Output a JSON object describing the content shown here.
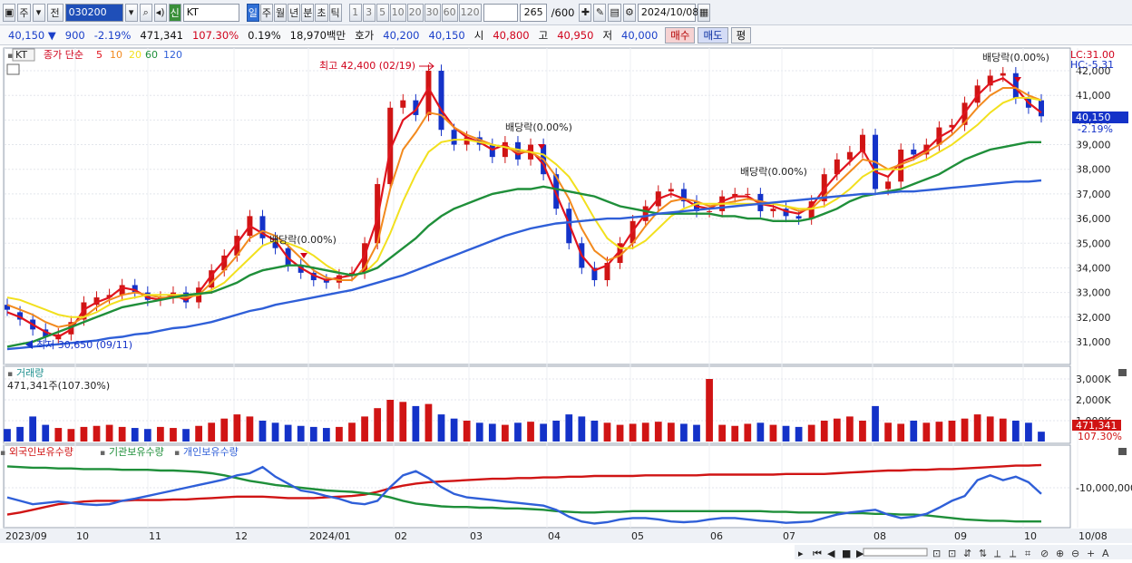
{
  "toolbar": {
    "period": "주",
    "prev_label": "전",
    "code": "030200",
    "name_badge": "신",
    "name": "KT",
    "tf_buttons": [
      "일",
      "주",
      "월",
      "년",
      "분",
      "초",
      "틱"
    ],
    "active_tf": "일",
    "n_buttons": [
      "1",
      "3",
      "5",
      "10",
      "20",
      "30",
      "60",
      "120"
    ],
    "count": "265",
    "count_max": "/600",
    "date": "2024/10/08"
  },
  "quote": {
    "price": "40,150",
    "change": "900",
    "change_pct": "-2.19%",
    "volume": "471,341",
    "vol_ratio": "107.30%",
    "turnover": "0.19%",
    "amount": "18,970백만",
    "ask_label": "호가",
    "ask": "40,200",
    "bid": "40,150",
    "open_label": "시",
    "open": "40,800",
    "high_label": "고",
    "high": "40,950",
    "low_label": "저",
    "low": "40,000",
    "buy_label": "매수",
    "sell_label": "매도",
    "eval_label": "평"
  },
  "legend": {
    "tag": "KT",
    "title": "종가 단순",
    "ma": [
      "5",
      "10",
      "20",
      "60",
      "120"
    ]
  },
  "annotations": {
    "high": "최고 42,400 (02/19)",
    "low": "최저 30,650 (09/11)",
    "div": "배당락(0.00%)",
    "lc": "LC:31.00",
    "hc": "HC:-5.31",
    "price_tag": "40,150",
    "price_pct": "-2.19%"
  },
  "volume_panel": {
    "title": "거래량",
    "info": "471,341주(107.30%)",
    "tag": "471,341",
    "tag_pct": "107.30%"
  },
  "holding_panel": {
    "items": [
      "외국인보유수량",
      "기관보유수량",
      "개인보유수량"
    ],
    "axis_label": "-10,000,000"
  },
  "colors": {
    "ma5": "#e0141e",
    "ma10": "#f28a1e",
    "ma20": "#f2e01e",
    "ma60": "#1f8f3a",
    "ma120": "#2f5fd8",
    "up": "#d01414",
    "down": "#1432c8"
  },
  "chart_data": [
    {
      "type": "candlestick",
      "title": "KT",
      "y_ticks": [
        31000,
        32000,
        33000,
        34000,
        35000,
        36000,
        37000,
        38000,
        39000,
        40000,
        41000,
        42000
      ],
      "ylim": [
        30300,
        42700
      ],
      "x_labels": [
        "2023/09",
        "10",
        "11",
        "12",
        "2024/01",
        "02",
        "03",
        "04",
        "05",
        "06",
        "07",
        "08",
        "09",
        "10",
        "10/08"
      ],
      "series": [
        {
          "name": "5",
          "values": [
            32200,
            32000,
            31700,
            31400,
            31200,
            31500,
            32300,
            32600,
            32800,
            33200,
            33100,
            32800,
            32700,
            32900,
            32700,
            33000,
            33700,
            34300,
            35000,
            35700,
            35400,
            35100,
            34400,
            34000,
            33700,
            33500,
            33600,
            33700,
            34500,
            36000,
            38800,
            40000,
            40400,
            41300,
            40400,
            39700,
            39300,
            39100,
            38800,
            39000,
            38600,
            38800,
            38200,
            37000,
            35800,
            34500,
            33900,
            34100,
            34700,
            35500,
            36200,
            36800,
            37000,
            36800,
            36500,
            36400,
            36700,
            36900,
            36900,
            36600,
            36500,
            36300,
            36200,
            36500,
            37200,
            37800,
            38300,
            38800,
            37900,
            37700,
            38300,
            38500,
            38800,
            39300,
            39600,
            40300,
            41000,
            41500,
            41700,
            41300,
            40700,
            40300
          ]
        },
        {
          "name": "10",
          "values": [
            32500,
            32300,
            32100,
            31800,
            31600,
            31700,
            32000,
            32400,
            32700,
            32900,
            33000,
            32900,
            32800,
            32800,
            32800,
            32900,
            33400,
            33900,
            34500,
            35200,
            35500,
            35300,
            34900,
            34400,
            33900,
            33600,
            33500,
            33500,
            34000,
            35000,
            37200,
            38800,
            39500,
            40300,
            40200,
            39700,
            39400,
            39200,
            39000,
            38900,
            38700,
            38700,
            38400,
            37700,
            36800,
            35600,
            34700,
            34300,
            34500,
            35000,
            35700,
            36300,
            36700,
            36800,
            36700,
            36500,
            36600,
            36700,
            36800,
            36700,
            36600,
            36500,
            36300,
            36400,
            36900,
            37400,
            37900,
            38400,
            38300,
            38000,
            38200,
            38400,
            38700,
            39000,
            39400,
            39900,
            40500,
            41000,
            41300,
            41300,
            41000,
            40800
          ]
        },
        {
          "name": "20",
          "values": [
            32800,
            32700,
            32500,
            32300,
            32100,
            32000,
            32000,
            32200,
            32500,
            32700,
            32800,
            32900,
            32900,
            32900,
            32900,
            32900,
            33100,
            33400,
            33900,
            34400,
            34900,
            35100,
            35000,
            34800,
            34500,
            34100,
            33800,
            33700,
            33800,
            34300,
            35400,
            36700,
            37800,
            38700,
            39100,
            39200,
            39200,
            39100,
            39000,
            38900,
            38800,
            38700,
            38600,
            38200,
            37700,
            36900,
            36000,
            35200,
            34800,
            34800,
            35100,
            35600,
            36100,
            36400,
            36600,
            36600,
            36600,
            36600,
            36600,
            36600,
            36600,
            36500,
            36400,
            36400,
            36500,
            36800,
            37200,
            37700,
            38000,
            38000,
            38000,
            38200,
            38400,
            38700,
            39000,
            39400,
            39800,
            40300,
            40700,
            40900,
            40900,
            40800
          ]
        },
        {
          "name": "60",
          "values": [
            30800,
            30900,
            31000,
            31200,
            31400,
            31600,
            31800,
            32000,
            32200,
            32400,
            32500,
            32600,
            32700,
            32800,
            32900,
            32950,
            33000,
            33200,
            33400,
            33700,
            33900,
            34000,
            34100,
            34100,
            34000,
            33900,
            33800,
            33700,
            33800,
            34000,
            34400,
            34800,
            35200,
            35700,
            36100,
            36400,
            36600,
            36800,
            37000,
            37100,
            37200,
            37200,
            37300,
            37200,
            37100,
            37000,
            36900,
            36700,
            36500,
            36400,
            36300,
            36200,
            36200,
            36200,
            36200,
            36200,
            36100,
            36100,
            36000,
            36000,
            35900,
            35900,
            35900,
            36000,
            36200,
            36400,
            36700,
            36900,
            37000,
            37100,
            37200,
            37400,
            37600,
            37800,
            38100,
            38400,
            38600,
            38800,
            38900,
            39000,
            39100,
            39100
          ]
        },
        {
          "name": "120",
          "values": [
            30700,
            30750,
            30800,
            30850,
            30900,
            30950,
            31000,
            31050,
            31150,
            31200,
            31300,
            31350,
            31450,
            31550,
            31600,
            31700,
            31800,
            31950,
            32100,
            32250,
            32350,
            32500,
            32600,
            32700,
            32800,
            32900,
            33000,
            33100,
            33250,
            33400,
            33550,
            33700,
            33900,
            34100,
            34300,
            34500,
            34700,
            34900,
            35100,
            35300,
            35450,
            35600,
            35700,
            35800,
            35850,
            35900,
            35950,
            36000,
            36000,
            36050,
            36100,
            36200,
            36250,
            36300,
            36350,
            36400,
            36450,
            36500,
            36550,
            36600,
            36650,
            36700,
            36750,
            36800,
            36850,
            36900,
            36950,
            37000,
            37000,
            37050,
            37100,
            37100,
            37150,
            37200,
            37250,
            37300,
            37350,
            37400,
            37450,
            37500,
            37500,
            37550
          ]
        }
      ],
      "close": [
        32300,
        31900,
        31500,
        31200,
        31300,
        31800,
        32600,
        32800,
        32900,
        33300,
        33000,
        32700,
        32800,
        33000,
        32600,
        33200,
        33900,
        34500,
        35300,
        36100,
        35200,
        34800,
        34100,
        33800,
        33500,
        33400,
        33700,
        33800,
        35000,
        37400,
        40500,
        40800,
        40200,
        42000,
        39600,
        39000,
        39300,
        39000,
        38500,
        39100,
        38400,
        39000,
        37800,
        36400,
        35000,
        34000,
        33500,
        34200,
        35000,
        35900,
        36500,
        37100,
        37200,
        36700,
        36300,
        36300,
        36900,
        37000,
        37000,
        36300,
        36400,
        36100,
        36000,
        36700,
        37800,
        38400,
        38700,
        39400,
        37200,
        37500,
        38800,
        38600,
        39000,
        39700,
        39800,
        40700,
        41400,
        41800,
        41900,
        40900,
        40500,
        40150
      ],
      "open": [
        32500,
        32200,
        31900,
        31500,
        31100,
        31300,
        31900,
        32500,
        32800,
        32900,
        33300,
        33000,
        32700,
        32800,
        33000,
        32600,
        33200,
        33900,
        34500,
        35300,
        36100,
        35200,
        34800,
        34100,
        33800,
        33500,
        33400,
        33700,
        33800,
        35000,
        37400,
        40500,
        40800,
        40200,
        42000,
        39600,
        39000,
        39300,
        39000,
        38500,
        39100,
        38400,
        39000,
        37800,
        36400,
        35000,
        34000,
        33500,
        34200,
        35000,
        35900,
        36500,
        37100,
        37200,
        36700,
        36300,
        36300,
        36900,
        37000,
        37000,
        36300,
        36400,
        36100,
        36000,
        36700,
        37800,
        38400,
        38700,
        39400,
        37200,
        37500,
        38800,
        38600,
        39000,
        39700,
        39800,
        40700,
        41400,
        41800,
        41900,
        40900,
        40800
      ],
      "volume_k": [
        600,
        700,
        1200,
        800,
        650,
        600,
        700,
        750,
        800,
        700,
        650,
        600,
        700,
        650,
        600,
        750,
        900,
        1100,
        1300,
        1200,
        1000,
        900,
        800,
        750,
        700,
        650,
        700,
        900,
        1200,
        1600,
        2000,
        1900,
        1700,
        1800,
        1300,
        1100,
        1000,
        900,
        850,
        800,
        900,
        950,
        850,
        1000,
        1300,
        1200,
        1000,
        900,
        800,
        850,
        900,
        950,
        900,
        850,
        800,
        3000,
        800,
        750,
        850,
        900,
        800,
        750,
        700,
        800,
        1000,
        1100,
        1200,
        1000,
        1700,
        900,
        850,
        1000,
        900,
        950,
        1000,
        1100,
        1300,
        1200,
        1100,
        1000,
        900,
        470
      ],
      "holdings": {
        "foreign": [
          0.15,
          0.18,
          0.22,
          0.26,
          0.3,
          0.32,
          0.34,
          0.35,
          0.35,
          0.35,
          0.36,
          0.36,
          0.36,
          0.37,
          0.37,
          0.38,
          0.39,
          0.4,
          0.41,
          0.41,
          0.41,
          0.4,
          0.39,
          0.39,
          0.39,
          0.4,
          0.41,
          0.42,
          0.44,
          0.48,
          0.53,
          0.57,
          0.6,
          0.62,
          0.63,
          0.64,
          0.65,
          0.66,
          0.67,
          0.67,
          0.68,
          0.68,
          0.69,
          0.69,
          0.7,
          0.7,
          0.71,
          0.71,
          0.71,
          0.71,
          0.72,
          0.72,
          0.72,
          0.72,
          0.72,
          0.73,
          0.73,
          0.73,
          0.73,
          0.73,
          0.73,
          0.74,
          0.74,
          0.74,
          0.74,
          0.75,
          0.76,
          0.77,
          0.78,
          0.79,
          0.79,
          0.8,
          0.8,
          0.81,
          0.81,
          0.82,
          0.83,
          0.84,
          0.85,
          0.86,
          0.86,
          0.87
        ],
        "institution": [
          0.85,
          0.84,
          0.83,
          0.83,
          0.82,
          0.82,
          0.81,
          0.81,
          0.81,
          0.8,
          0.8,
          0.8,
          0.79,
          0.79,
          0.78,
          0.77,
          0.75,
          0.72,
          0.68,
          0.64,
          0.61,
          0.58,
          0.56,
          0.54,
          0.52,
          0.5,
          0.49,
          0.48,
          0.46,
          0.44,
          0.4,
          0.35,
          0.31,
          0.29,
          0.27,
          0.26,
          0.26,
          0.25,
          0.25,
          0.24,
          0.24,
          0.23,
          0.22,
          0.2,
          0.19,
          0.18,
          0.18,
          0.19,
          0.19,
          0.2,
          0.2,
          0.2,
          0.2,
          0.2,
          0.2,
          0.2,
          0.2,
          0.2,
          0.2,
          0.2,
          0.19,
          0.19,
          0.18,
          0.18,
          0.18,
          0.18,
          0.17,
          0.17,
          0.16,
          0.16,
          0.15,
          0.15,
          0.14,
          0.12,
          0.1,
          0.08,
          0.07,
          0.06,
          0.06,
          0.05,
          0.05,
          0.05
        ],
        "individual": [
          0.4,
          0.35,
          0.3,
          0.32,
          0.34,
          0.32,
          0.3,
          0.29,
          0.3,
          0.35,
          0.38,
          0.42,
          0.46,
          0.5,
          0.54,
          0.58,
          0.62,
          0.66,
          0.72,
          0.75,
          0.84,
          0.7,
          0.6,
          0.5,
          0.47,
          0.42,
          0.38,
          0.32,
          0.3,
          0.35,
          0.55,
          0.72,
          0.78,
          0.68,
          0.55,
          0.45,
          0.4,
          0.38,
          0.36,
          0.34,
          0.32,
          0.3,
          0.28,
          0.22,
          0.12,
          0.05,
          0.02,
          0.04,
          0.08,
          0.1,
          0.1,
          0.08,
          0.05,
          0.04,
          0.05,
          0.08,
          0.1,
          0.1,
          0.08,
          0.06,
          0.05,
          0.03,
          0.04,
          0.05,
          0.1,
          0.15,
          0.18,
          0.2,
          0.22,
          0.15,
          0.1,
          0.12,
          0.16,
          0.25,
          0.35,
          0.42,
          0.65,
          0.72,
          0.65,
          0.7,
          0.62,
          0.45
        ]
      }
    }
  ]
}
